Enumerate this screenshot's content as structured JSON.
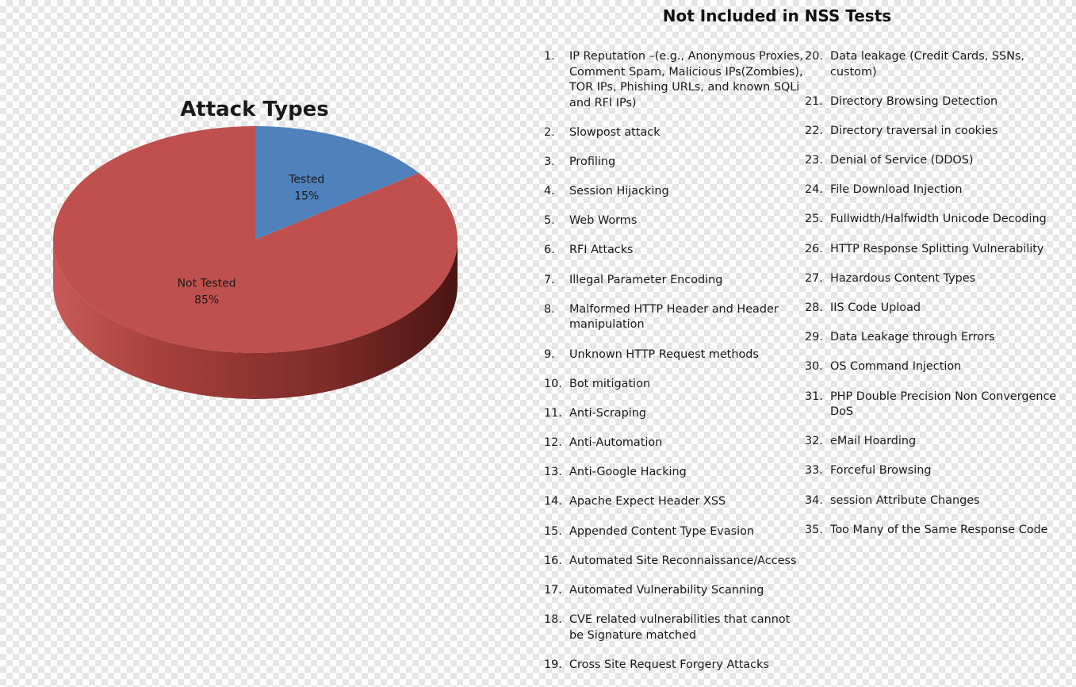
{
  "chart_data": {
    "type": "pie",
    "title": "Attack Types",
    "categories": [
      "Tested",
      "Not Tested"
    ],
    "values": [
      15,
      85
    ],
    "labels": [
      "15%",
      "85%"
    ],
    "colors": [
      "#4f81bd",
      "#c0504d"
    ]
  },
  "list": {
    "title": "Not Included in NSS Tests",
    "items": [
      {
        "num": "1.",
        "text": "IP Reputation –(e.g., Anonymous Proxies, Comment Spam, Malicious IPs(Zombies), TOR IPs, Phishing URLs, and known SQLi  and RFI IPs)"
      },
      {
        "num": "2.",
        "text": "Slowpost attack"
      },
      {
        "num": "3.",
        "text": "Profiling"
      },
      {
        "num": "4.",
        "text": "Session Hijacking"
      },
      {
        "num": "5.",
        "text": "Web Worms"
      },
      {
        "num": "6.",
        "text": "RFI Attacks"
      },
      {
        "num": "7.",
        "text": "Illegal Parameter Encoding"
      },
      {
        "num": "8.",
        "text": "Malformed HTTP Header and Header manipulation"
      },
      {
        "num": "9.",
        "text": "Unknown HTTP Request methods"
      },
      {
        "num": "10.",
        "text": "Bot mitigation"
      },
      {
        "num": "11.",
        "text": "Anti-Scraping"
      },
      {
        "num": "12.",
        "text": "Anti-Automation"
      },
      {
        "num": "13.",
        "text": "Anti-Google Hacking"
      },
      {
        "num": "14.",
        "text": "Apache Expect Header XSS"
      },
      {
        "num": "15.",
        "text": "Appended Content Type Evasion"
      },
      {
        "num": "16.",
        "text": "Automated Site Reconnaissance/Access"
      },
      {
        "num": "17.",
        "text": "Automated Vulnerability Scanning"
      },
      {
        "num": "18.",
        "text": "CVE related vulnerabilities that cannot be Signature matched"
      },
      {
        "num": "19.",
        "text": "Cross Site Request Forgery Attacks"
      },
      {
        "num": "20.",
        "text": "Data leakage (Credit Cards, SSNs, custom)"
      },
      {
        "num": "21.",
        "text": "Directory Browsing Detection"
      },
      {
        "num": "22.",
        "text": "Directory traversal in cookies"
      },
      {
        "num": "23.",
        "text": "Denial of Service (DDOS)"
      },
      {
        "num": "24.",
        "text": "File Download Injection"
      },
      {
        "num": "25.",
        "text": "Fullwidth/Halfwidth Unicode Decoding"
      },
      {
        "num": "26.",
        "text": "HTTP Response Splitting Vulnerability"
      },
      {
        "num": "27.",
        "text": "Hazardous Content Types"
      },
      {
        "num": "28.",
        "text": "IIS Code Upload"
      },
      {
        "num": "29.",
        "text": "Data Leakage through Errors"
      },
      {
        "num": "30.",
        "text": "OS Command Injection"
      },
      {
        "num": "31.",
        "text": "PHP Double Precision Non Convergence DoS"
      },
      {
        "num": "32.",
        "text": "eMail Hoarding"
      },
      {
        "num": "33.",
        "text": "Forceful Browsing"
      },
      {
        "num": "34.",
        "text": "session Attribute Changes"
      },
      {
        "num": "35.",
        "text": "Too Many of the Same Response Code"
      }
    ]
  }
}
